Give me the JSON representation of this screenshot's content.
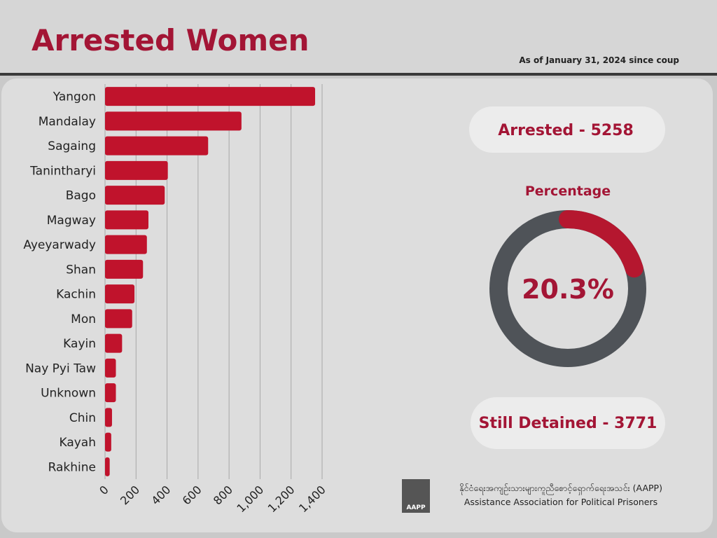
{
  "header": {
    "title": "Arrested Women",
    "note": "As of January 31, 2024 since coup"
  },
  "chart_data": [
    {
      "type": "hbar",
      "categories": [
        "Yangon",
        "Mandalay",
        "Sagaing",
        "Tanintharyi",
        "Bago",
        "Magway",
        "Ayeyarwady",
        "Shan",
        "Kachin",
        "Mon",
        "Kayin",
        "Nay Pyi Taw",
        "Unknown",
        "Chin",
        "Kayah",
        "Rakhine"
      ],
      "values": [
        1355,
        880,
        665,
        405,
        385,
        280,
        270,
        245,
        190,
        175,
        110,
        70,
        70,
        45,
        40,
        30
      ],
      "color": "#c0132c",
      "xlim": [
        0,
        1400
      ],
      "xticks": [
        0,
        200,
        400,
        600,
        800,
        {
          "value": 1000,
          "label": "1,000"
        },
        {
          "value": 1200,
          "label": "1,200"
        },
        {
          "value": 1400,
          "label": "1,400"
        }
      ],
      "grid": true
    },
    {
      "type": "donut",
      "title": "Percentage",
      "values": [
        20.3
      ],
      "value_labels": [
        "20.3%"
      ],
      "lim": [
        0,
        100
      ],
      "color": "#b5172f",
      "track_color": "#4f5358"
    }
  ],
  "stats": {
    "arrested": "Arrested - 5258",
    "detained": "Still Detained - 3771"
  },
  "footer": {
    "logo": "AAPP",
    "burmese": "နိုင်ငံရေးအကျဉ်းသားများကူညီစောင့်ရှောက်ရေးအသင်း (AAPP)",
    "english": "Assistance Association for Political Prisoners"
  }
}
